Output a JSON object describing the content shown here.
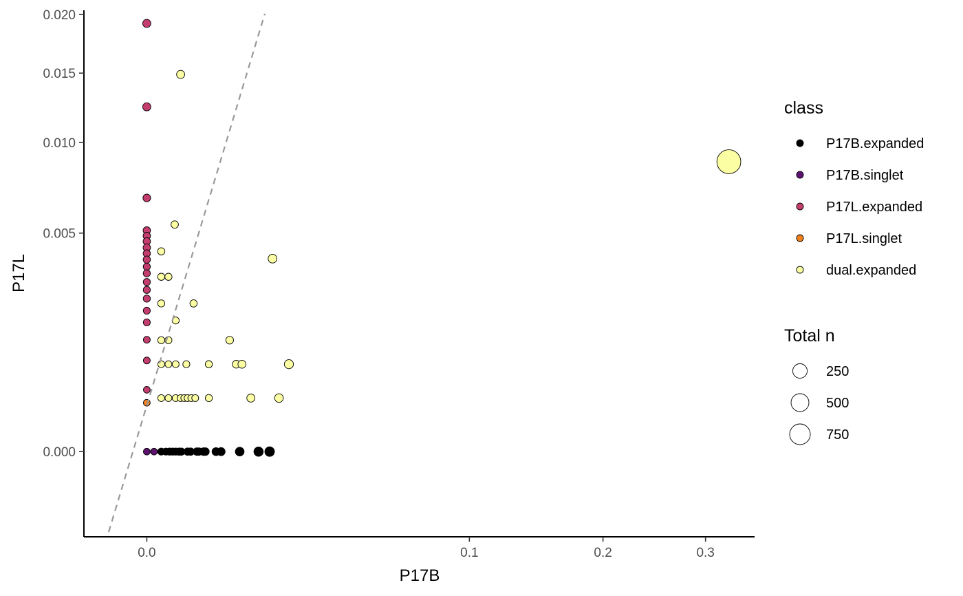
{
  "chart_data": {
    "type": "scatter",
    "xlabel": "P17B",
    "ylabel": "P17L",
    "x_ticks": [
      {
        "value": 0.0,
        "label": "0.0"
      },
      {
        "value": 0.1,
        "label": "0.1"
      },
      {
        "value": 0.2,
        "label": "0.2"
      },
      {
        "value": 0.3,
        "label": "0.3"
      }
    ],
    "y_ticks": [
      {
        "value": 0.0,
        "label": "0.000"
      },
      {
        "value": 0.005,
        "label": "0.005"
      },
      {
        "value": 0.01,
        "label": "0.010"
      },
      {
        "value": 0.015,
        "label": "0.015"
      },
      {
        "value": 0.02,
        "label": "0.020"
      }
    ],
    "xlim": [
      -0.0038,
      0.355
    ],
    "ylim": [
      -0.00076,
      0.02039
    ],
    "scale": "sqrt",
    "grid": false,
    "reference_line": {
      "style": "dashed",
      "color": "#999999",
      "slope": 1,
      "intercept": 0
    },
    "legend": {
      "position": "right",
      "color_title": "class",
      "size_title": "Total n",
      "classes": [
        {
          "name": "P17B.expanded",
          "color": "#000000"
        },
        {
          "name": "P17B.singlet",
          "color": "#5c126e"
        },
        {
          "name": "P17L.expanded",
          "color": "#c33d6e"
        },
        {
          "name": "P17L.singlet",
          "color": "#f07f1e"
        },
        {
          "name": "dual.expanded",
          "color": "#fcfea4"
        }
      ],
      "sizes": [
        {
          "label": "250",
          "value": 250
        },
        {
          "label": "500",
          "value": 500
        },
        {
          "label": "750",
          "value": 750
        }
      ]
    },
    "series": [
      {
        "name": "P17B.expanded",
        "points": [
          {
            "x": 0.0002,
            "y": 0,
            "n": 40
          },
          {
            "x": 0.00035,
            "y": 0,
            "n": 40
          },
          {
            "x": 0.0005,
            "y": 0,
            "n": 45
          },
          {
            "x": 0.00065,
            "y": 0,
            "n": 45
          },
          {
            "x": 0.0008,
            "y": 0,
            "n": 50
          },
          {
            "x": 0.001,
            "y": 0,
            "n": 55
          },
          {
            "x": 0.00115,
            "y": 0,
            "n": 55
          },
          {
            "x": 0.0016,
            "y": 0,
            "n": 60
          },
          {
            "x": 0.00185,
            "y": 0,
            "n": 65
          },
          {
            "x": 0.0024,
            "y": 0,
            "n": 70
          },
          {
            "x": 0.0026,
            "y": 0,
            "n": 70
          },
          {
            "x": 0.0031,
            "y": 0,
            "n": 80
          },
          {
            "x": 0.0033,
            "y": 0,
            "n": 80
          },
          {
            "x": 0.0046,
            "y": 0,
            "n": 95
          },
          {
            "x": 0.0053,
            "y": 0,
            "n": 100
          },
          {
            "x": 0.0083,
            "y": 0,
            "n": 140
          },
          {
            "x": 0.012,
            "y": 0,
            "n": 170
          },
          {
            "x": 0.0145,
            "y": 0,
            "n": 190
          }
        ]
      },
      {
        "name": "P17B.singlet",
        "points": [
          {
            "x": 0.0,
            "y": 0,
            "n": 20
          },
          {
            "x": 5e-05,
            "y": 0,
            "n": 20
          }
        ]
      },
      {
        "name": "P17L.expanded",
        "points": [
          {
            "x": 0,
            "y": 0.0192,
            "n": 100
          },
          {
            "x": 0,
            "y": 0.01245,
            "n": 100
          },
          {
            "x": 0,
            "y": 0.00674,
            "n": 75
          },
          {
            "x": 0,
            "y": 0.00512,
            "n": 65
          },
          {
            "x": 0,
            "y": 0.00487,
            "n": 65
          },
          {
            "x": 0,
            "y": 0.00463,
            "n": 60
          },
          {
            "x": 0,
            "y": 0.00436,
            "n": 60
          },
          {
            "x": 0,
            "y": 0.00411,
            "n": 55
          },
          {
            "x": 0,
            "y": 0.00386,
            "n": 55
          },
          {
            "x": 0,
            "y": 0.00358,
            "n": 50
          },
          {
            "x": 0,
            "y": 0.00333,
            "n": 50
          },
          {
            "x": 0,
            "y": 0.00301,
            "n": 50
          },
          {
            "x": 0,
            "y": 0.00274,
            "n": 45
          },
          {
            "x": 0,
            "y": 0.00245,
            "n": 45
          },
          {
            "x": 0,
            "y": 0.00208,
            "n": 40
          },
          {
            "x": 0,
            "y": 0.00175,
            "n": 40
          },
          {
            "x": 0,
            "y": 0.00131,
            "n": 35
          },
          {
            "x": 0,
            "y": 0.00087,
            "n": 30
          },
          {
            "x": 0,
            "y": 0.0004,
            "n": 25
          }
        ]
      },
      {
        "name": "P17L.singlet",
        "points": [
          {
            "x": 0,
            "y": 0.00025,
            "n": 20
          }
        ]
      },
      {
        "name": "dual.expanded",
        "points": [
          {
            "x": 0.0011,
            "y": 0.0149,
            "n": 100
          },
          {
            "x": 0.00075,
            "y": 0.0054,
            "n": 65
          },
          {
            "x": 0.0002,
            "y": 0.0042,
            "n": 55
          },
          {
            "x": 0.0002,
            "y": 0.0032,
            "n": 50
          },
          {
            "x": 0.00045,
            "y": 0.0032,
            "n": 50
          },
          {
            "x": 0.0152,
            "y": 0.0039,
            "n": 140
          },
          {
            "x": 0.0002,
            "y": 0.0023,
            "n": 45
          },
          {
            "x": 0.0021,
            "y": 0.0023,
            "n": 55
          },
          {
            "x": 0.0008,
            "y": 0.0018,
            "n": 40
          },
          {
            "x": 0.0002,
            "y": 0.0013,
            "n": 40
          },
          {
            "x": 0.00045,
            "y": 0.0013,
            "n": 40
          },
          {
            "x": 0.0066,
            "y": 0.0013,
            "n": 80
          },
          {
            "x": 0.0002,
            "y": 0.0008,
            "n": 35
          },
          {
            "x": 0.00045,
            "y": 0.0008,
            "n": 35
          },
          {
            "x": 0.0008,
            "y": 0.0008,
            "n": 35
          },
          {
            "x": 0.0015,
            "y": 0.0008,
            "n": 40
          },
          {
            "x": 0.0037,
            "y": 0.0008,
            "n": 50
          },
          {
            "x": 0.0077,
            "y": 0.0008,
            "n": 85
          },
          {
            "x": 0.0087,
            "y": 0.0008,
            "n": 90
          },
          {
            "x": 0.0194,
            "y": 0.0008,
            "n": 160
          },
          {
            "x": 0.0002,
            "y": 0.0003,
            "n": 30
          },
          {
            "x": 0.00045,
            "y": 0.0003,
            "n": 30
          },
          {
            "x": 0.0008,
            "y": 0.0003,
            "n": 30
          },
          {
            "x": 0.0011,
            "y": 0.0003,
            "n": 30
          },
          {
            "x": 0.00135,
            "y": 0.0003,
            "n": 30
          },
          {
            "x": 0.0016,
            "y": 0.0003,
            "n": 35
          },
          {
            "x": 0.0019,
            "y": 0.0003,
            "n": 35
          },
          {
            "x": 0.00225,
            "y": 0.0003,
            "n": 35
          },
          {
            "x": 0.0037,
            "y": 0.0003,
            "n": 45
          },
          {
            "x": 0.0104,
            "y": 0.0003,
            "n": 100
          },
          {
            "x": 0.0168,
            "y": 0.0003,
            "n": 130
          },
          {
            "x": 0.3256,
            "y": 0.0088,
            "n": 1000
          }
        ]
      }
    ]
  }
}
